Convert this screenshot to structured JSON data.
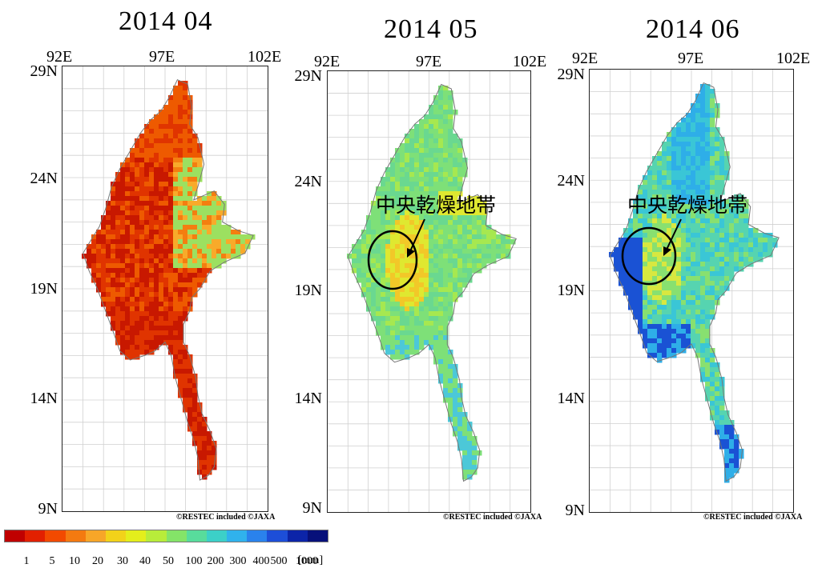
{
  "panels": [
    {
      "title": "2014  04",
      "lon_labels": [
        "92E",
        "97E",
        "102E"
      ],
      "lat_labels": [
        "29N",
        "24N",
        "19N",
        "14N",
        "9N"
      ],
      "credit": "©RESTEC included ©JAXA",
      "annotation": ""
    },
    {
      "title": "2014  05",
      "lon_labels": [
        "92E",
        "97E",
        "102E"
      ],
      "lat_labels": [
        "29N",
        "24N",
        "19N",
        "14N",
        "9N"
      ],
      "credit": "©RESTEC included ©JAXA",
      "annotation": "中央乾燥地帯"
    },
    {
      "title": "2014  06",
      "lon_labels": [
        "92E",
        "97E",
        "102E"
      ],
      "lat_labels": [
        "29N",
        "24N",
        "19N",
        "14N",
        "9N"
      ],
      "credit": "©RESTEC included ©JAXA",
      "annotation": "中央乾燥地帯"
    }
  ],
  "legend": {
    "colors": [
      "#c00000",
      "#e22000",
      "#f24a00",
      "#f47a10",
      "#f7a628",
      "#f2d21a",
      "#e4ee1c",
      "#b8ec3a",
      "#84e468",
      "#58dc9c",
      "#3cd0c8",
      "#30b2ec",
      "#2a82ec",
      "#1d4ed8",
      "#0c24a8",
      "#07107a"
    ],
    "tick_labels": [
      "1",
      "5",
      "10",
      "20",
      "30",
      "40",
      "50",
      "100",
      "200",
      "300",
      "400",
      "500",
      "1000"
    ],
    "unit": "[mm]"
  },
  "map_colors": {
    "apr": [
      "#c81800",
      "#e03400",
      "#ee5a00",
      "#f47e10",
      "#f8aa2a",
      "#9ce060"
    ],
    "may": [
      "#7ee078",
      "#6ad890",
      "#a6e850",
      "#dfe830",
      "#f2c828",
      "#4cc8d8"
    ],
    "jun": [
      "#56d4b0",
      "#3ac6d6",
      "#2eaee8",
      "#88e070",
      "#d8e840",
      "#1a52d4"
    ]
  }
}
